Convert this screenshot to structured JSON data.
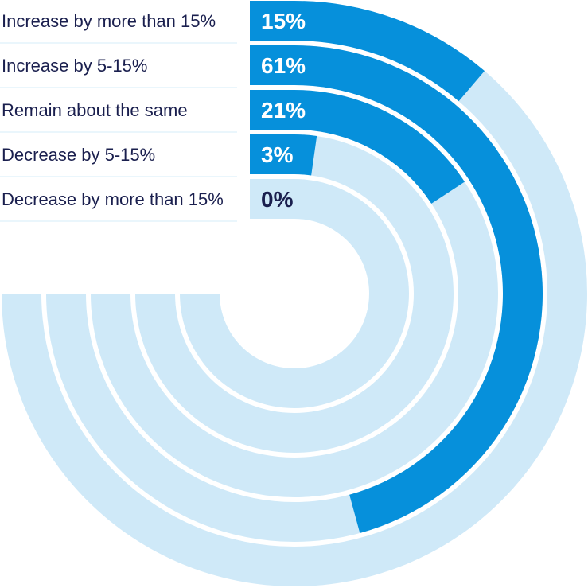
{
  "chart_data": {
    "type": "radial-bar",
    "title": "",
    "categories": [
      "Increase by more than 15%",
      "Increase by 5-15%",
      "Remain about the same",
      "Decrease by 5-15%",
      "Decrease by more than 15%"
    ],
    "values": [
      15,
      61,
      21,
      3,
      0
    ],
    "value_labels": [
      "15%",
      "61%",
      "21%",
      "3%",
      "0%"
    ],
    "max": 100,
    "colors": {
      "filled": "#0690db",
      "track": "#cfe9f8",
      "label_text": "#1a1f4e",
      "value_on_fill": "#ffffff",
      "value_on_track": "#1a1f4e"
    }
  }
}
